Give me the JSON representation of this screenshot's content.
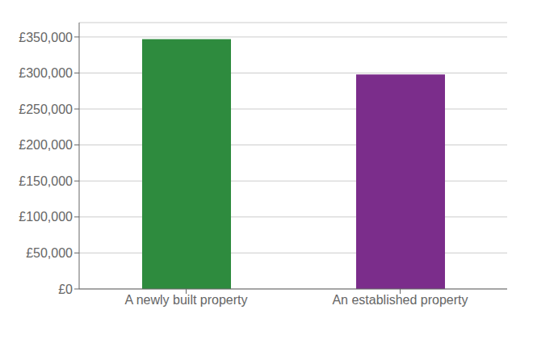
{
  "chart_data": {
    "type": "bar",
    "categories": [
      "A newly built property",
      "An established property"
    ],
    "values": [
      347000,
      298000
    ],
    "colors": [
      "#2e8b3e",
      "#7b2d8b"
    ],
    "ylim": [
      0,
      370000
    ],
    "yticks": [
      {
        "value": 0,
        "label": "£0"
      },
      {
        "value": 50000,
        "label": "£50,000"
      },
      {
        "value": 100000,
        "label": "£100,000"
      },
      {
        "value": 150000,
        "label": "£150,000"
      },
      {
        "value": 200000,
        "label": "£200,000"
      },
      {
        "value": 250000,
        "label": "£250,000"
      },
      {
        "value": 300000,
        "label": "£300,000"
      },
      {
        "value": 350000,
        "label": "£350,000"
      }
    ],
    "grid": true
  }
}
